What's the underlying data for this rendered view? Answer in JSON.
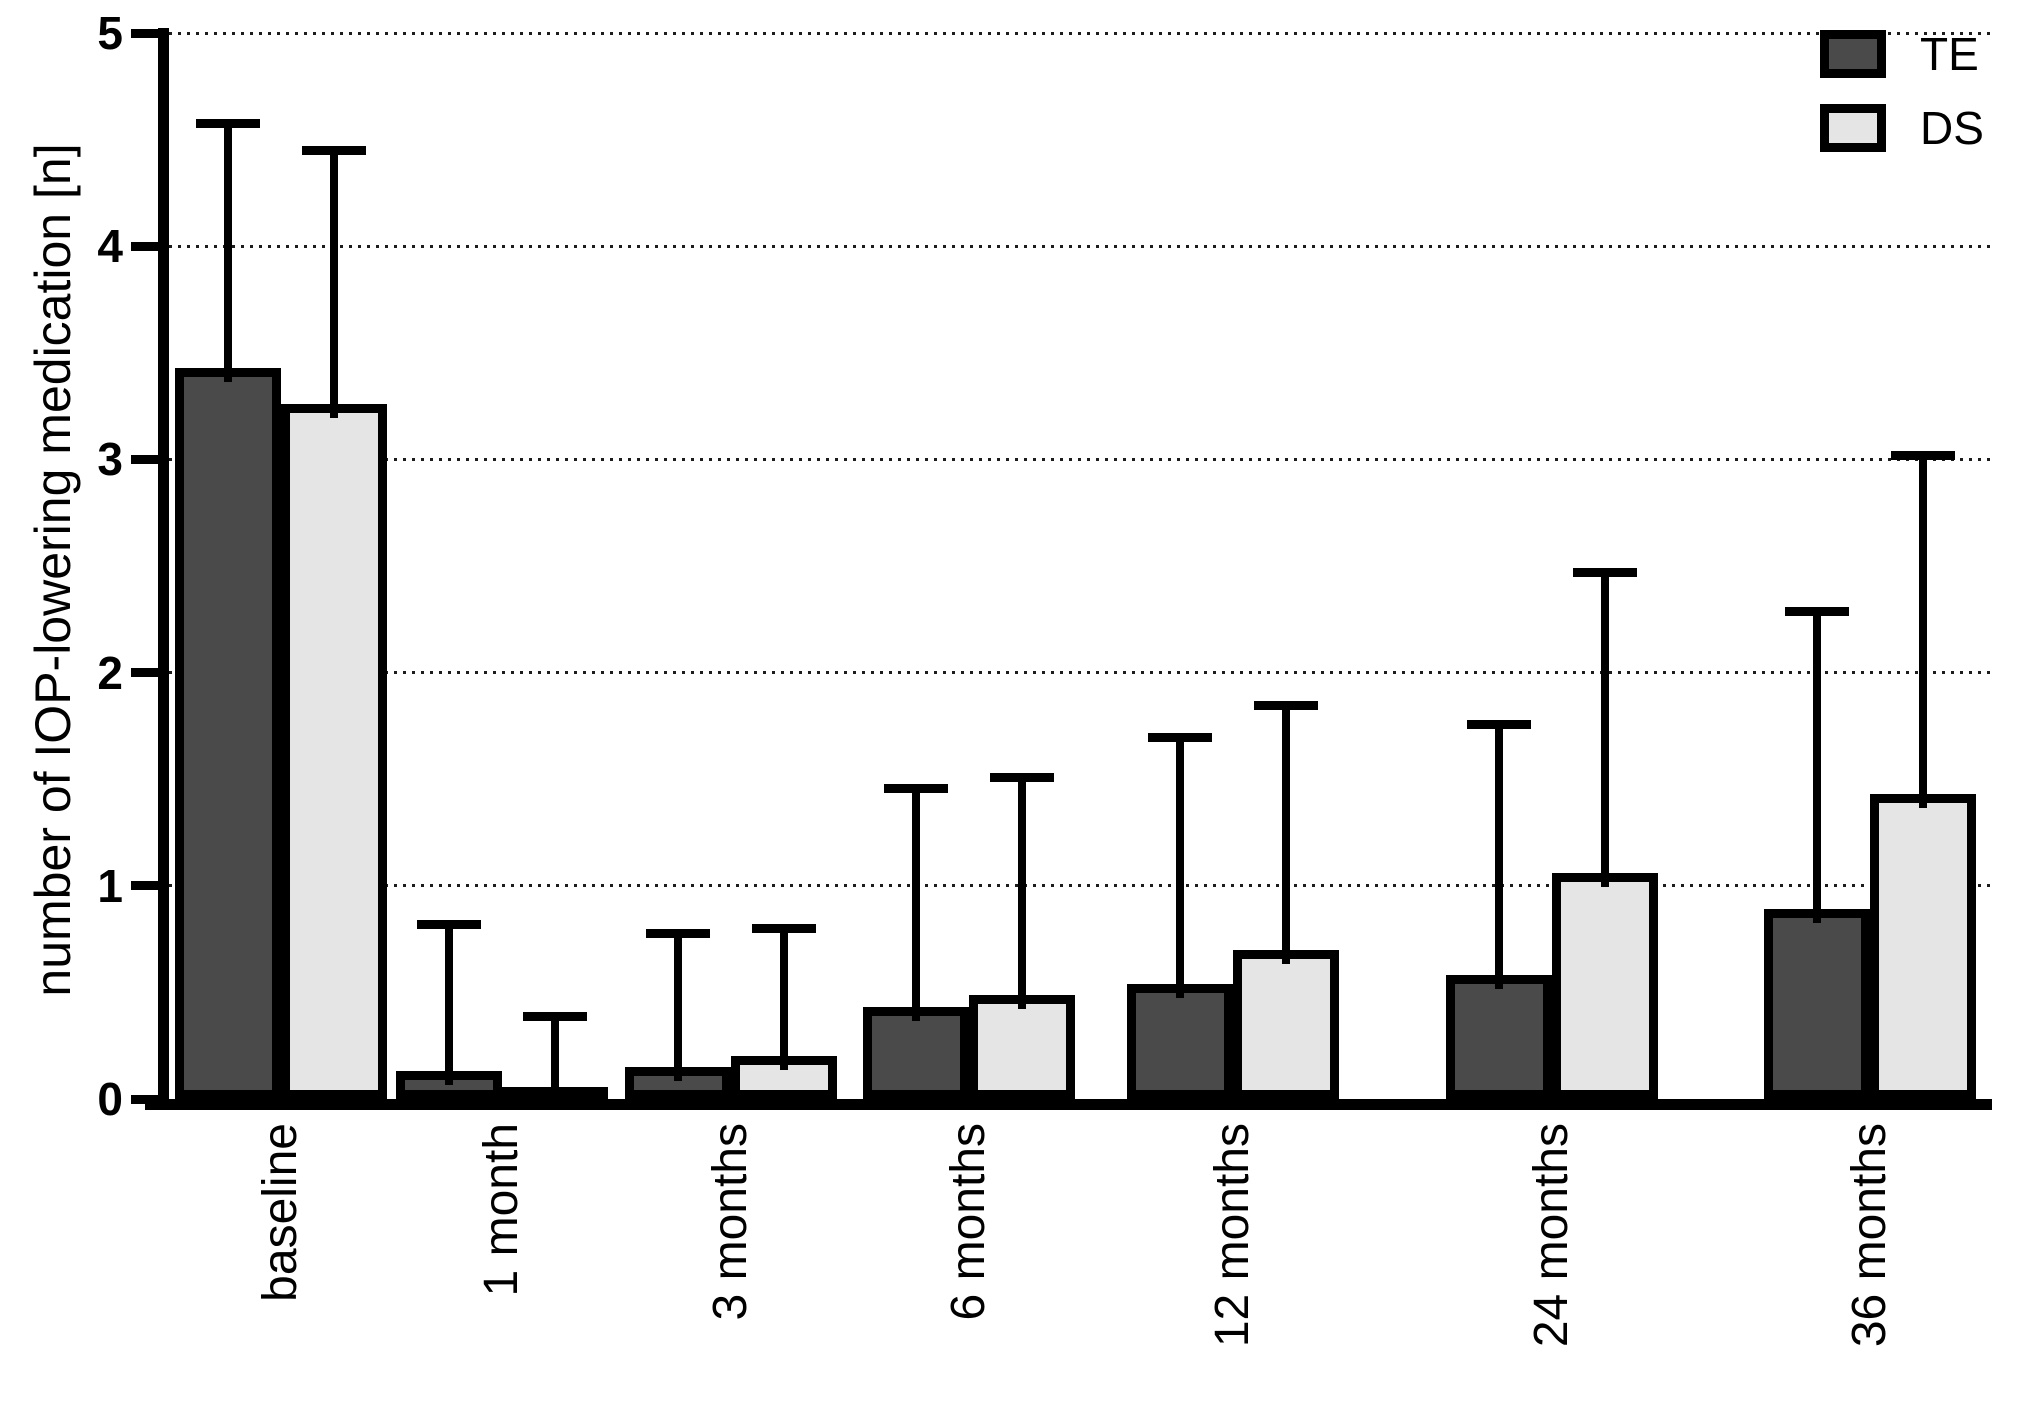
{
  "chart_data": {
    "type": "bar",
    "title": "",
    "xlabel": "",
    "ylabel": "number of IOP-lowering medication [n]",
    "categories": [
      "baseline",
      "1 month",
      "3 months",
      "6 months",
      "12 months",
      "24 months",
      "36 months"
    ],
    "series": [
      {
        "name": "TE",
        "color": "#4a4a4a",
        "values": [
          3.43,
          0.13,
          0.15,
          0.43,
          0.54,
          0.58,
          0.89
        ],
        "errors_up": [
          1.15,
          0.69,
          0.63,
          1.03,
          1.16,
          1.18,
          1.4
        ]
      },
      {
        "name": "DS",
        "color": "#e5e5e5",
        "values": [
          3.26,
          0.05,
          0.2,
          0.49,
          0.7,
          1.06,
          1.43
        ],
        "errors_up": [
          1.19,
          0.34,
          0.6,
          1.02,
          1.15,
          1.41,
          1.59
        ]
      }
    ],
    "ylim": [
      0,
      5
    ],
    "yticks": [
      0,
      1,
      2,
      3,
      4,
      5
    ],
    "grid": "dotted horizontal gridlines at 1,2,3,4,5",
    "legend_position": "top-right",
    "error_bars": "upper SD whiskers with caps",
    "bar_border_color": "#000000",
    "axis_color": "#000000",
    "background_color": "#ffffff"
  }
}
